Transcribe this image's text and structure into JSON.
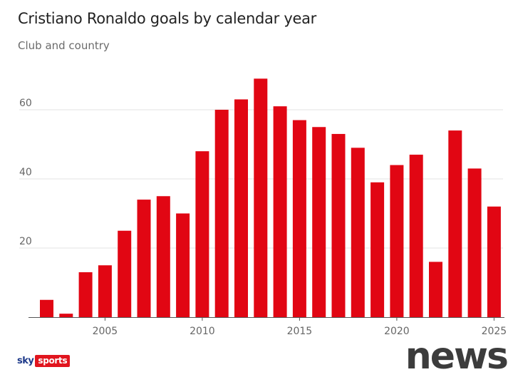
{
  "header": {
    "title": "Cristiano Ronaldo goals by calendar year",
    "subtitle": "Club and country"
  },
  "branding": {
    "sky_label": "sky",
    "sports_label": "sports",
    "watermark": "news"
  },
  "colors": {
    "bar": "#e10613",
    "gridline": "#e3e3e3",
    "axis": "#555555"
  },
  "chart_data": {
    "type": "bar",
    "title": "Cristiano Ronaldo goals by calendar year",
    "subtitle": "Club and country",
    "xlabel": "",
    "ylabel": "",
    "categories": [
      2002,
      2003,
      2004,
      2005,
      2006,
      2007,
      2008,
      2009,
      2010,
      2011,
      2012,
      2013,
      2014,
      2015,
      2016,
      2017,
      2018,
      2019,
      2020,
      2021,
      2022,
      2023,
      2024,
      2025
    ],
    "values": [
      5,
      1,
      13,
      15,
      25,
      34,
      35,
      30,
      48,
      60,
      63,
      69,
      61,
      57,
      55,
      53,
      49,
      39,
      44,
      47,
      16,
      54,
      43,
      32
    ],
    "x_ticks": [
      "2005",
      "2010",
      "2015",
      "2020",
      "2025"
    ],
    "y_ticks": [
      "20",
      "40",
      "60"
    ],
    "ylim": [
      0,
      72
    ],
    "grid": true,
    "legend": "none"
  }
}
